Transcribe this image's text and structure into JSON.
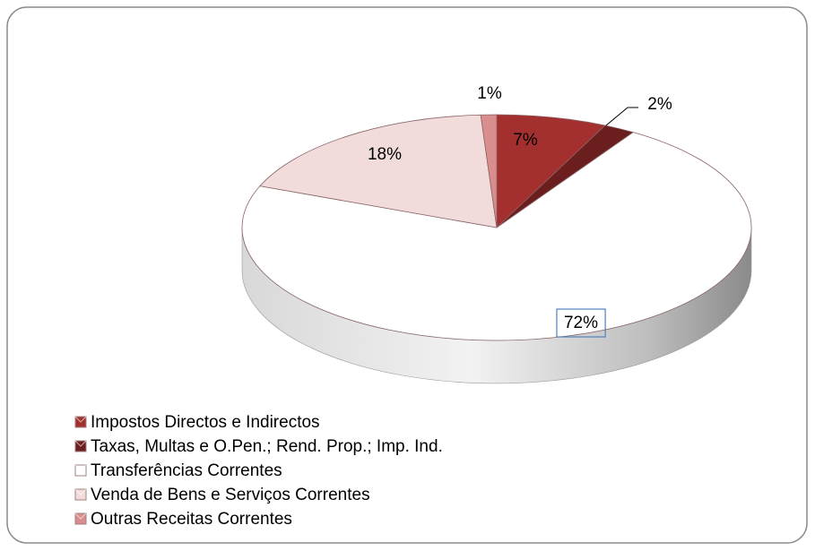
{
  "chart_data": {
    "type": "pie3d",
    "categories": [
      "Impostos Directos e Indirectos",
      "Taxas, Multas e O.Pen.; Rend. Prop.; Imp. Ind.",
      "Transferências Correntes",
      "Venda de Bens e Serviços Correntes",
      "Outras Receitas Correntes"
    ],
    "values": [
      7,
      2,
      72,
      18,
      1
    ],
    "value_labels": [
      "7%",
      "2%",
      "72%",
      "18%",
      "1%"
    ],
    "colors": [
      "#a3302f",
      "#6a1e1d",
      "#ffffff",
      "#f1dcdb",
      "#d98d8c"
    ],
    "legend": "bottom-left"
  }
}
